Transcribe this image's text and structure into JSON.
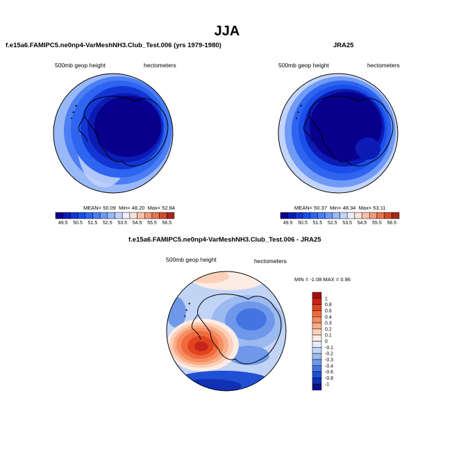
{
  "main_title": "JJA",
  "chart_data": [
    {
      "type": "heatmap",
      "projection": "polar-stereographic (south pole)",
      "title": "f.e15a6.FAMIPC5.ne0np4-VarMeshNH3.Club_Test.006 (yrs 1979-1980)",
      "left_label": "500mb geop height",
      "right_label": "hectometers",
      "stats": {
        "mean_label": "MEAN=",
        "mean": "50.09",
        "min_label": "Min=",
        "min": "48.20",
        "max_label": "Max=",
        "max": "52.84"
      },
      "colorbar": {
        "levels": [
          49.5,
          50,
          50.5,
          51,
          51.5,
          52,
          52.5,
          53,
          53.5,
          54,
          54.5,
          55,
          55.5,
          56,
          56.5
        ],
        "tick_labels": [
          "49.5",
          "50.5",
          "51.5",
          "52.5",
          "53.5",
          "54.5",
          "55.5",
          "56.5"
        ],
        "colors": [
          "#08008c",
          "#0b1bb4",
          "#1236d4",
          "#1a4ee8",
          "#2d64f0",
          "#4a7ef2",
          "#6f9af5",
          "#98b8f8",
          "#c3d4fb",
          "#eaf0fe",
          "#fbe1d6",
          "#f8c0a6",
          "#f29a78",
          "#e8744e",
          "#d24c2a",
          "#a8261a"
        ]
      }
    },
    {
      "type": "heatmap",
      "projection": "polar-stereographic (south pole)",
      "title": "JRA25",
      "left_label": "500mb geop height",
      "right_label": "hectometers",
      "stats": {
        "mean_label": "MEAN=",
        "mean": "50.37",
        "min_label": "Min=",
        "min": "48.34",
        "max_label": "Max=",
        "max": "53.11"
      },
      "colorbar": {
        "levels": [
          49.5,
          50,
          50.5,
          51,
          51.5,
          52,
          52.5,
          53,
          53.5,
          54,
          54.5,
          55,
          55.5,
          56,
          56.5
        ],
        "tick_labels": [
          "49.5",
          "50.5",
          "51.5",
          "52.5",
          "53.5",
          "54.5",
          "55.5",
          "56.5"
        ],
        "colors": [
          "#08008c",
          "#0b1bb4",
          "#1236d4",
          "#1a4ee8",
          "#2d64f0",
          "#4a7ef2",
          "#6f9af5",
          "#98b8f8",
          "#c3d4fb",
          "#eaf0fe",
          "#fbe1d6",
          "#f8c0a6",
          "#f29a78",
          "#e8744e",
          "#d24c2a",
          "#a8261a"
        ]
      }
    },
    {
      "type": "heatmap",
      "projection": "polar-stereographic (south pole)",
      "title": "f.e15a6.FAMIPC5.ne0np4-VarMeshNH3.Club_Test.006 - JRA25",
      "left_label": "500mb geop height",
      "right_label": "hectometers",
      "stats": {
        "min_label": "MIN =",
        "min": "-1.08",
        "max_label": "MAX =",
        "max": "0.96"
      },
      "colorbar": {
        "orientation": "vertical",
        "levels": [
          -1,
          -0.8,
          -0.6,
          -0.4,
          -0.3,
          -0.2,
          -0.1,
          0,
          0.1,
          0.2,
          0.3,
          0.4,
          0.6,
          0.8,
          1
        ],
        "tick_labels": [
          "1",
          "0.8",
          "0.6",
          "0.4",
          "0.3",
          "0.2",
          "0.1",
          "0",
          "-0.1",
          "-0.2",
          "-0.3",
          "-0.4",
          "-0.6",
          "-0.8",
          "-1"
        ],
        "colors": [
          "#a50f0b",
          "#c8241c",
          "#e0451f",
          "#f06a3e",
          "#f68c60",
          "#f9ad8a",
          "#fbcfb8",
          "#fdece3",
          "#e4ecfb",
          "#c2d4f6",
          "#9dbaf0",
          "#6f98ea",
          "#4474e2",
          "#2050d4",
          "#1230b4",
          "#0a1488"
        ]
      }
    }
  ]
}
